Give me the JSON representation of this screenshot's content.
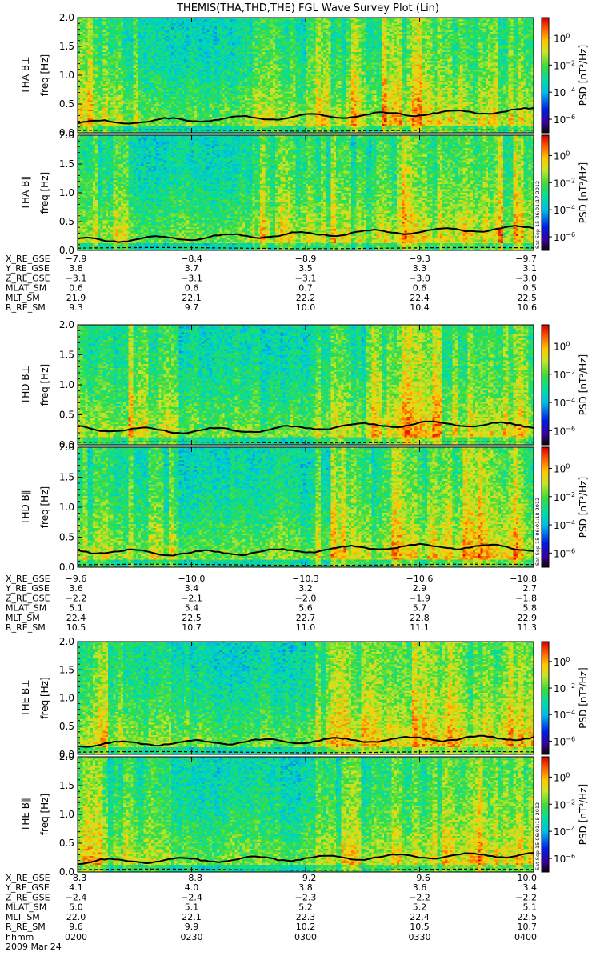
{
  "title": "THEMIS(THA,THD,THE) FGL Wave Survey Plot (Lin)",
  "chart_data": {
    "type": "heatmap",
    "title": "THEMIS(THA,THD,THE) FGL Wave Survey Plot (Lin)",
    "x_range": [
      "02:00",
      "04:00"
    ],
    "time_ticks": [
      "0200",
      "0230",
      "0300",
      "0330",
      "0400"
    ],
    "date_label": "2009 Mar 24",
    "time_row_label": "hhmm",
    "freq_ticks": [
      "0.0",
      "0.5",
      "1.0",
      "1.5",
      "2.0"
    ],
    "freq_range_hz": [
      0.0,
      2.0
    ],
    "ylabel": "freq [Hz]",
    "colorbar_label": "PSD [nT²/Hz]",
    "colorbar_ticks": [
      "10⁰",
      "10⁻²",
      "10⁻⁴",
      "10⁻⁶"
    ],
    "colorbar_exponents": [
      0,
      -2,
      -4,
      -6
    ],
    "panels": [
      {
        "label": "THA B⊥",
        "stamp": ""
      },
      {
        "label": "THA B∥",
        "stamp": "Sat Sep 15 06:01:17 2012"
      },
      {
        "label": "THD B⊥",
        "stamp": ""
      },
      {
        "label": "THD B∥",
        "stamp": "Sat Sep 15 06:01:18 2012"
      },
      {
        "label": "THE B⊥",
        "stamp": ""
      },
      {
        "label": "THE B∥",
        "stamp": "Sat Sep 15 06:01:18 2012"
      }
    ],
    "ephemeris": [
      {
        "probe": "THA",
        "rows": [
          {
            "label": "X_RE_GSE",
            "values": [
              "-7.9",
              "-8.4",
              "-8.9",
              "-9.3",
              "-9.7"
            ]
          },
          {
            "label": "Y_RE_GSE",
            "values": [
              "3.8",
              "3.7",
              "3.5",
              "3.3",
              "3.1"
            ]
          },
          {
            "label": "Z_RE_GSE",
            "values": [
              "-3.1",
              "-3.1",
              "-3.1",
              "-3.0",
              "-3.0"
            ]
          },
          {
            "label": "MLAT_SM",
            "values": [
              "0.6",
              "0.6",
              "0.7",
              "0.6",
              "0.5"
            ]
          },
          {
            "label": "MLT_SM",
            "values": [
              "21.9",
              "22.1",
              "22.2",
              "22.4",
              "22.5"
            ]
          },
          {
            "label": "R_RE_SM",
            "values": [
              "9.3",
              "9.7",
              "10.0",
              "10.4",
              "10.6"
            ]
          }
        ]
      },
      {
        "probe": "THD",
        "rows": [
          {
            "label": "X_RE_GSE",
            "values": [
              "-9.6",
              "-10.0",
              "-10.3",
              "-10.6",
              "-10.8"
            ]
          },
          {
            "label": "Y_RE_GSE",
            "values": [
              "3.6",
              "3.4",
              "3.2",
              "2.9",
              "2.7"
            ]
          },
          {
            "label": "Z_RE_GSE",
            "values": [
              "-2.2",
              "-2.1",
              "-2.0",
              "-1.9",
              "-1.8"
            ]
          },
          {
            "label": "MLAT_SM",
            "values": [
              "5.1",
              "5.4",
              "5.6",
              "5.7",
              "5.8"
            ]
          },
          {
            "label": "MLT_SM",
            "values": [
              "22.4",
              "22.5",
              "22.7",
              "22.8",
              "22.9"
            ]
          },
          {
            "label": "R_RE_SM",
            "values": [
              "10.5",
              "10.7",
              "11.0",
              "11.1",
              "11.3"
            ]
          }
        ]
      },
      {
        "probe": "THE",
        "rows": [
          {
            "label": "X_RE_GSE",
            "values": [
              "-8.3",
              "-8.8",
              "-9.2",
              "-9.6",
              "-10.0"
            ]
          },
          {
            "label": "Y_RE_GSE",
            "values": [
              "4.1",
              "4.0",
              "3.8",
              "3.6",
              "3.4"
            ]
          },
          {
            "label": "Z_RE_GSE",
            "values": [
              "-2.4",
              "-2.4",
              "-2.3",
              "-2.2",
              "-2.2"
            ]
          },
          {
            "label": "MLAT_SM",
            "values": [
              "5.0",
              "5.1",
              "5.2",
              "5.2",
              "5.1"
            ]
          },
          {
            "label": "MLT_SM",
            "values": [
              "22.0",
              "22.1",
              "22.3",
              "22.4",
              "22.5"
            ]
          },
          {
            "label": "R_RE_SM",
            "values": [
              "9.6",
              "9.9",
              "10.2",
              "10.5",
              "10.7"
            ]
          }
        ]
      }
    ]
  }
}
